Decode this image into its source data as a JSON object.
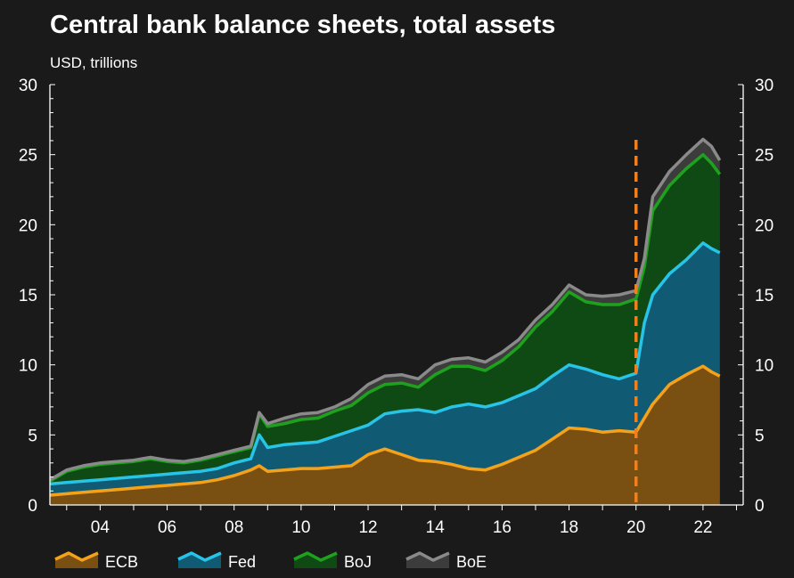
{
  "chart_data": {
    "type": "area",
    "title": "Central bank balance sheets, total assets",
    "subtitle": "USD, trillions",
    "stacked": true,
    "xlim": [
      2002.5,
      2023.2
    ],
    "ylim": [
      0,
      30
    ],
    "y_ticks": [
      0,
      5,
      10,
      15,
      20,
      25,
      30
    ],
    "y_axis_both_sides": true,
    "x_ticks": [
      2004,
      2006,
      2008,
      2010,
      2012,
      2014,
      2016,
      2018,
      2020,
      2022
    ],
    "x_tick_labels": [
      "04",
      "06",
      "08",
      "10",
      "12",
      "14",
      "16",
      "18",
      "20",
      "22"
    ],
    "grid": false,
    "legend_position": "bottom",
    "vline": {
      "x": 2020.0,
      "style": "dashed",
      "color": "#f07f20"
    },
    "x": [
      2002.5,
      2003.0,
      2003.5,
      2004.0,
      2004.5,
      2005.0,
      2005.5,
      2006.0,
      2006.5,
      2007.0,
      2007.5,
      2008.0,
      2008.5,
      2008.75,
      2009.0,
      2009.5,
      2010.0,
      2010.5,
      2011.0,
      2011.5,
      2012.0,
      2012.5,
      2013.0,
      2013.5,
      2014.0,
      2014.5,
      2015.0,
      2015.5,
      2016.0,
      2016.5,
      2017.0,
      2017.5,
      2018.0,
      2018.5,
      2019.0,
      2019.5,
      2020.0,
      2020.25,
      2020.5,
      2021.0,
      2021.5,
      2022.0,
      2022.25,
      2022.5
    ],
    "series": [
      {
        "name": "ECB",
        "color": "#f5a21b",
        "fill": "#7a4f12",
        "values": [
          0.7,
          0.8,
          0.9,
          1.0,
          1.1,
          1.2,
          1.3,
          1.4,
          1.5,
          1.6,
          1.8,
          2.1,
          2.5,
          2.8,
          2.4,
          2.5,
          2.6,
          2.6,
          2.7,
          2.8,
          3.6,
          4.0,
          3.6,
          3.2,
          3.1,
          2.9,
          2.6,
          2.5,
          2.9,
          3.4,
          3.9,
          4.7,
          5.5,
          5.4,
          5.2,
          5.3,
          5.2,
          6.2,
          7.2,
          8.6,
          9.3,
          9.9,
          9.5,
          9.2
        ]
      },
      {
        "name": "Fed",
        "color": "#27c4e8",
        "fill": "#105a73",
        "values": [
          1.5,
          1.6,
          1.7,
          1.8,
          1.9,
          2.0,
          2.1,
          2.2,
          2.3,
          2.4,
          2.6,
          3.0,
          3.3,
          5.0,
          4.1,
          4.3,
          4.4,
          4.5,
          4.9,
          5.3,
          5.7,
          6.5,
          6.7,
          6.8,
          6.6,
          7.0,
          7.2,
          7.0,
          7.3,
          7.8,
          8.3,
          9.2,
          10.0,
          9.7,
          9.3,
          9.0,
          9.4,
          13.0,
          15.0,
          16.5,
          17.5,
          18.7,
          18.3,
          18.0
        ]
      },
      {
        "name": "BoJ",
        "color": "#1ea21e",
        "fill": "#0f4a14",
        "values": [
          1.7,
          2.4,
          2.7,
          2.9,
          3.0,
          3.1,
          3.3,
          3.1,
          3.0,
          3.2,
          3.5,
          3.8,
          4.1,
          6.5,
          5.6,
          5.8,
          6.1,
          6.2,
          6.7,
          7.1,
          8.0,
          8.6,
          8.7,
          8.4,
          9.3,
          9.9,
          9.9,
          9.6,
          10.3,
          11.3,
          12.7,
          13.8,
          15.2,
          14.5,
          14.3,
          14.3,
          14.7,
          17.0,
          21.0,
          22.8,
          24.0,
          25.0,
          24.4,
          23.6
        ]
      },
      {
        "name": "BoE",
        "color": "#8a8a8a",
        "fill": "#3c3c3c",
        "values": [
          1.8,
          2.5,
          2.8,
          3.0,
          3.1,
          3.2,
          3.4,
          3.2,
          3.1,
          3.3,
          3.6,
          3.9,
          4.2,
          6.6,
          5.8,
          6.2,
          6.5,
          6.6,
          7.0,
          7.6,
          8.6,
          9.2,
          9.3,
          9.0,
          10.0,
          10.4,
          10.5,
          10.2,
          10.9,
          11.8,
          13.2,
          14.3,
          15.7,
          15.0,
          14.9,
          15.0,
          15.3,
          17.6,
          22.0,
          23.8,
          25.0,
          26.1,
          25.6,
          24.6
        ]
      }
    ]
  }
}
